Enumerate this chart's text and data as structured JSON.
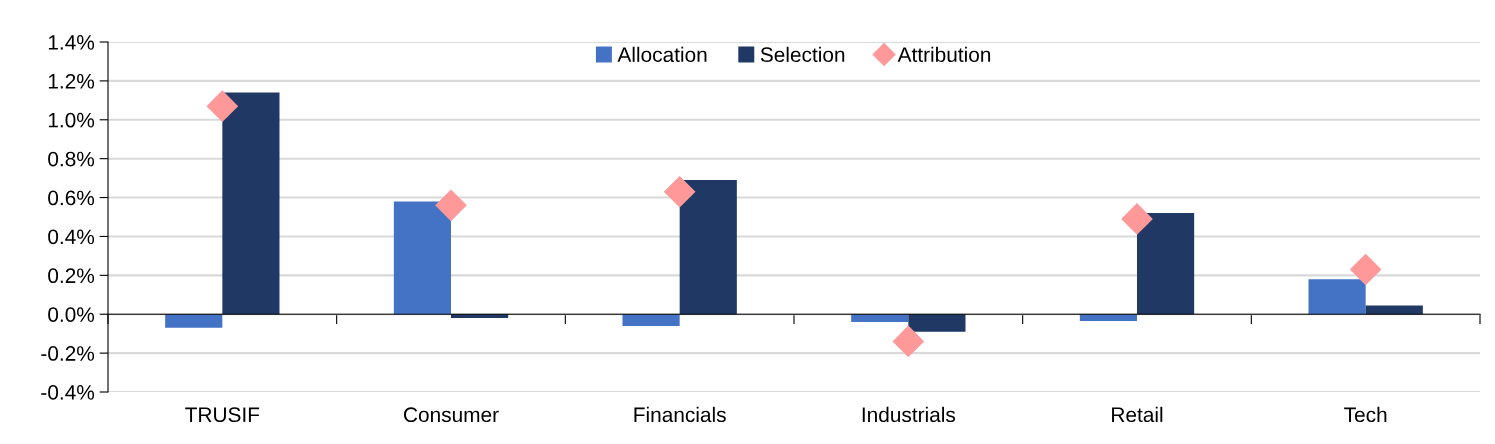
{
  "chart_data": {
    "type": "bar",
    "categories": [
      "TRUSIF",
      "Consumer",
      "Financials",
      "Industrials",
      "Retail",
      "Tech"
    ],
    "series": [
      {
        "name": "Allocation",
        "color": "#4472c4",
        "values": [
          -0.07,
          0.58,
          -0.06,
          -0.04,
          -0.035,
          0.18
        ]
      },
      {
        "name": "Selection",
        "color": "#1f3864",
        "values": [
          1.14,
          -0.02,
          0.69,
          -0.09,
          0.52,
          0.045
        ]
      },
      {
        "name": "Attribution",
        "type": "scatter",
        "color": "#ff9999",
        "marker": "diamond",
        "values": [
          1.07,
          0.56,
          0.63,
          -0.14,
          0.49,
          0.23
        ]
      }
    ],
    "ylim": [
      -0.4,
      1.4
    ],
    "yticks": [
      {
        "value": -0.4,
        "label": "-0.4%"
      },
      {
        "value": -0.2,
        "label": "-0.2%"
      },
      {
        "value": 0,
        "label": "0.0%"
      },
      {
        "value": 0.2,
        "label": "0.2%"
      },
      {
        "value": 0.4,
        "label": "0.4%"
      },
      {
        "value": 0.6,
        "label": "0.6%"
      },
      {
        "value": 0.8,
        "label": "0.8%"
      },
      {
        "value": 1.0,
        "label": "1.0%"
      },
      {
        "value": 1.2,
        "label": "1.2%"
      },
      {
        "value": 1.4,
        "label": "1.4%"
      }
    ],
    "grid": "y",
    "legend": "top"
  }
}
